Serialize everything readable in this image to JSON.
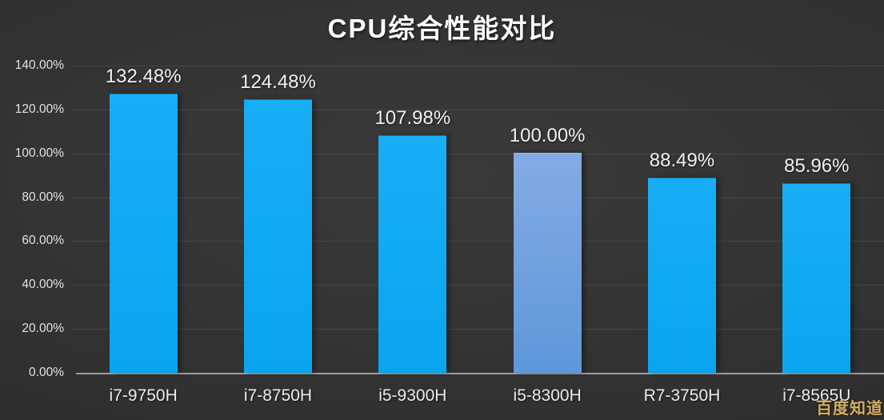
{
  "title": "CPU综合性能对比",
  "watermark": "百度知道",
  "chart_data": {
    "type": "bar",
    "title": "CPU综合性能对比",
    "categories": [
      "i7-9750H",
      "i7-8750H",
      "i5-9300H",
      "i5-8300H",
      "R7-3750H",
      "i7-8565U"
    ],
    "values": [
      132.48,
      124.48,
      107.98,
      100.0,
      88.49,
      85.96
    ],
    "value_labels": [
      "132.48%",
      "124.48%",
      "107.98%",
      "100.00%",
      "88.49%",
      "85.96%"
    ],
    "y_ticks": [
      "140.00%",
      "120.00%",
      "100.00%",
      "80.00%",
      "60.00%",
      "40.00%",
      "20.00%",
      "0.00%"
    ],
    "ylim": [
      0,
      140
    ],
    "xlabel": "",
    "ylabel": "",
    "grid": true,
    "legend": false,
    "highlight_index": 3,
    "bar_color_default": "#0da9f2",
    "bar_color_highlight": "#6d9fdd",
    "background_color": "#303030",
    "text_color": "#f0f0f0"
  }
}
